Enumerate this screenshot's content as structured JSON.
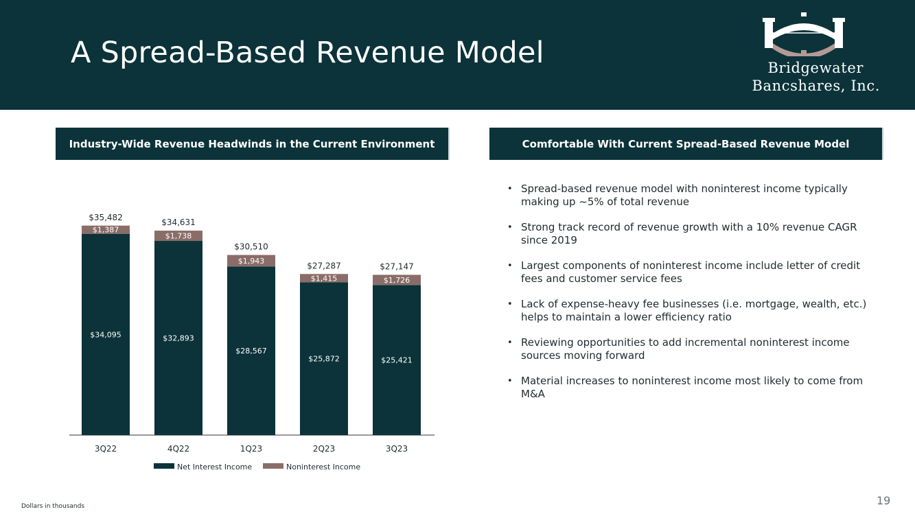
{
  "page": {
    "title": "A Spread-Based Revenue Model",
    "footnote": "Dollars in thousands",
    "page_number": "19"
  },
  "logo": {
    "line1": "Bridgewater",
    "line2": "Bancshares, Inc.",
    "icon": "bridge-arch-logo-icon"
  },
  "colors": {
    "header_bg": "#0b3339",
    "net_interest": "#0b3339",
    "noninterest": "#8a6d68",
    "axis": "#333333"
  },
  "left_section": {
    "title": "Industry-Wide Revenue Headwinds in the Current Environment"
  },
  "right_section": {
    "title": "Comfortable With Current Spread-Based Revenue Model",
    "bullets": [
      "Spread-based revenue model with noninterest income typically making up ~5% of total revenue",
      "Strong track record of revenue growth with a 10% revenue CAGR since 2019",
      "Largest components of noninterest income include letter of credit fees and customer service fees",
      "Lack of expense-heavy fee businesses (i.e. mortgage, wealth, etc.) helps to maintain a lower efficiency ratio",
      "Reviewing opportunities to add incremental noninterest income sources moving forward",
      "Material increases to noninterest income most likely to come from M&A"
    ]
  },
  "chart_data": {
    "type": "bar",
    "stacked": true,
    "categories": [
      "3Q22",
      "4Q22",
      "1Q23",
      "2Q23",
      "3Q23"
    ],
    "series": [
      {
        "name": "Net Interest Income",
        "values": [
          34095,
          32893,
          28567,
          25872,
          25421
        ],
        "labels": [
          "$34,095",
          "$32,893",
          "$28,567",
          "$25,872",
          "$25,421"
        ]
      },
      {
        "name": "Noninterest Income",
        "values": [
          1387,
          1738,
          1943,
          1415,
          1726
        ],
        "labels": [
          "$1,387",
          "$1,738",
          "$1,943",
          "$1,415",
          "$1,726"
        ]
      }
    ],
    "totals": [
      35482,
      34631,
      30510,
      27287,
      27147
    ],
    "total_labels": [
      "$35,482",
      "$34,631",
      "$30,510",
      "$27,287",
      "$27,147"
    ],
    "ylim": [
      0,
      36500
    ],
    "grid": false,
    "legend_position": "bottom"
  }
}
